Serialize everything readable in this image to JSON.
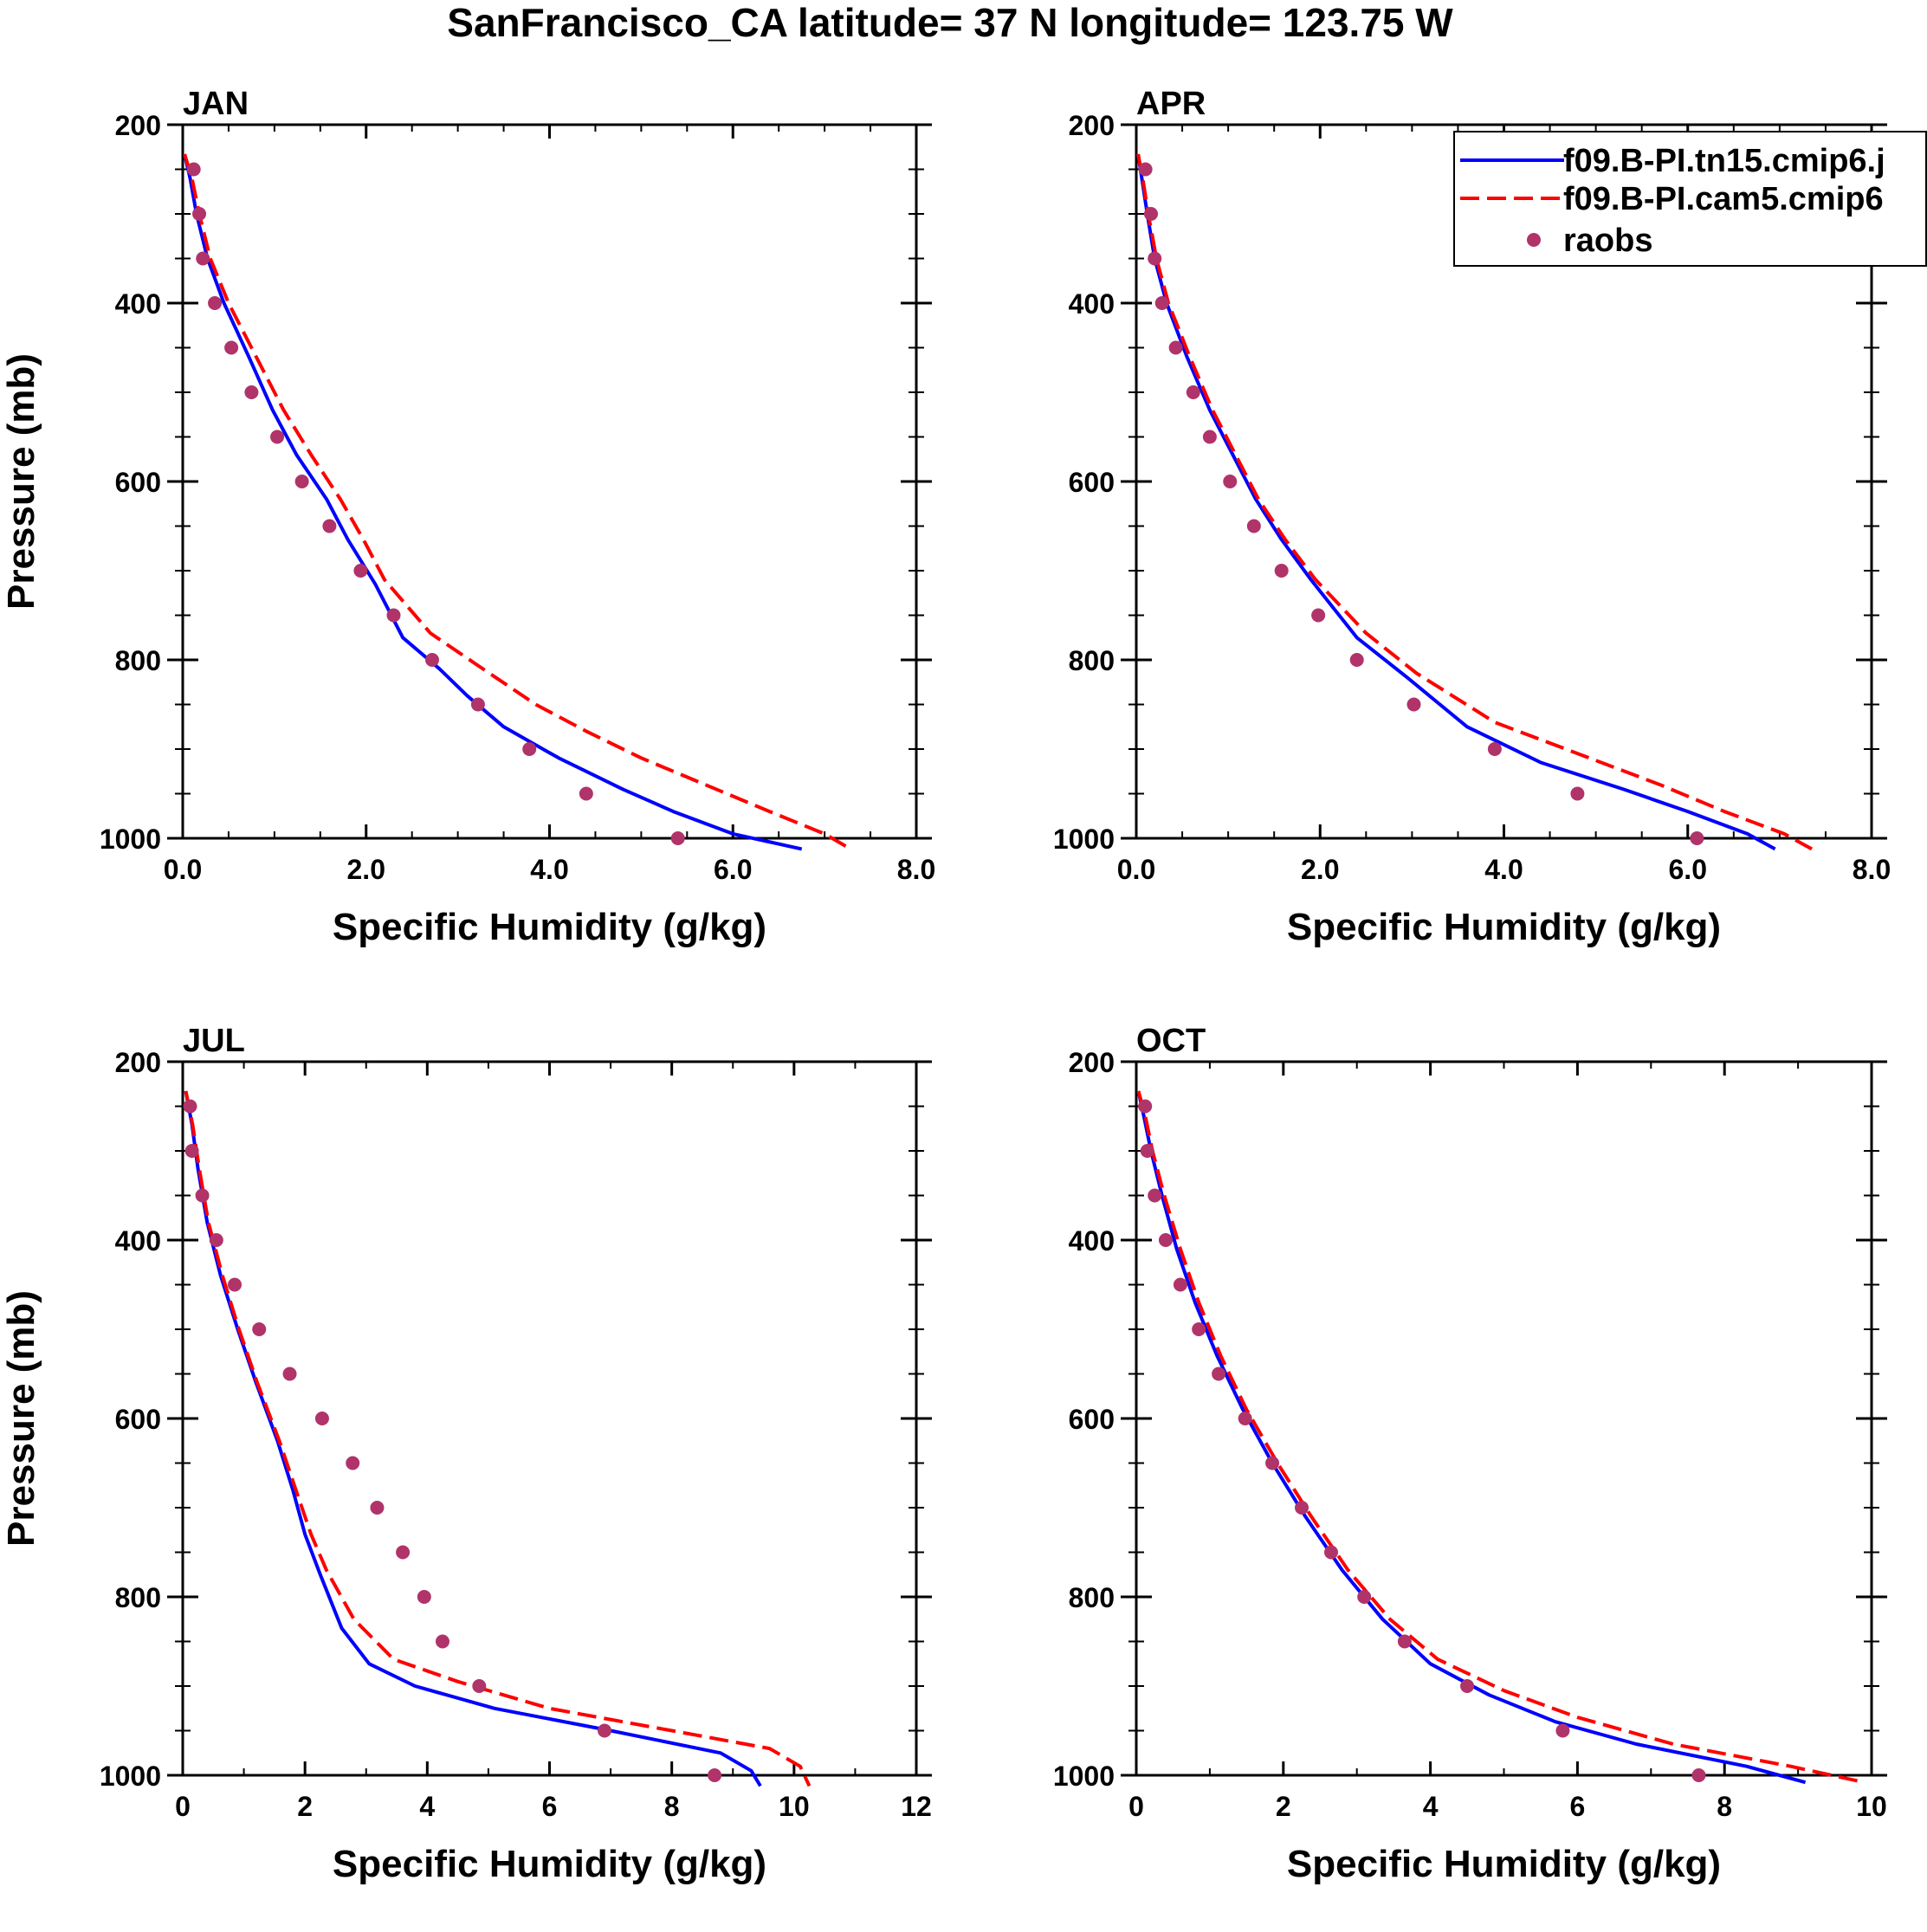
{
  "title": "SanFrancisco_CA  latitude= 37 N longitude= 123.75 W",
  "legend": {
    "series": [
      {
        "name": "f09.B-PI.tn15.cmip6.j",
        "color": "#0000ff",
        "dash": "solid"
      },
      {
        "name": "f09.B-PI.cam5.cmip6",
        "color": "#ff0000",
        "dash": "dashed"
      },
      {
        "name": "raobs",
        "color": "#b0336a",
        "dash": "markers"
      }
    ]
  },
  "chart_data": [
    {
      "type": "line",
      "title": "JAN",
      "xlabel": "Specific Humidity (g/kg)",
      "ylabel": "Pressure (mb)",
      "xlim": [
        0,
        8
      ],
      "ylim": [
        200,
        1020
      ],
      "xticks": [
        0,
        2,
        4,
        6,
        8
      ],
      "xtick_labels": [
        "0.0",
        "2.0",
        "4.0",
        "6.0",
        "8.0"
      ],
      "xminor": [
        0.5,
        1,
        1.5,
        2.5,
        3,
        3.5,
        4.5,
        5,
        5.5,
        6.5,
        7,
        7.5
      ],
      "yticks": [
        200,
        400,
        600,
        800,
        1000
      ],
      "ytick_labels": [
        "200",
        "400",
        "600",
        "800",
        "1000"
      ],
      "series": [
        {
          "name": "f09.B-PI.tn15.cmip6.j",
          "points": [
            [
              0.02,
              233
            ],
            [
              0.08,
              260
            ],
            [
              0.15,
              300
            ],
            [
              0.27,
              350
            ],
            [
              0.45,
              400
            ],
            [
              0.72,
              460
            ],
            [
              0.98,
              520
            ],
            [
              1.24,
              570
            ],
            [
              1.57,
              620
            ],
            [
              1.8,
              665
            ],
            [
              2.1,
              715
            ],
            [
              2.4,
              775
            ],
            [
              2.8,
              810
            ],
            [
              3.1,
              840
            ],
            [
              3.5,
              875
            ],
            [
              4.1,
              910
            ],
            [
              4.8,
              945
            ],
            [
              5.35,
              970
            ],
            [
              6.0,
              995
            ],
            [
              6.75,
              1012
            ]
          ]
        },
        {
          "name": "f09.B-PI.cam5.cmip6",
          "points": [
            [
              0.02,
              233
            ],
            [
              0.1,
              260
            ],
            [
              0.18,
              300
            ],
            [
              0.3,
              350
            ],
            [
              0.5,
              400
            ],
            [
              0.8,
              460
            ],
            [
              1.1,
              520
            ],
            [
              1.4,
              570
            ],
            [
              1.72,
              620
            ],
            [
              1.97,
              665
            ],
            [
              2.2,
              710
            ],
            [
              2.7,
              770
            ],
            [
              3.2,
              805
            ],
            [
              3.85,
              850
            ],
            [
              4.4,
              880
            ],
            [
              5.0,
              910
            ],
            [
              5.7,
              940
            ],
            [
              6.4,
              970
            ],
            [
              7.0,
              995
            ],
            [
              7.3,
              1013
            ]
          ]
        },
        {
          "name": "raobs",
          "points": [
            [
              0.12,
              250
            ],
            [
              0.18,
              300
            ],
            [
              0.22,
              350
            ],
            [
              0.35,
              400
            ],
            [
              0.53,
              450
            ],
            [
              0.75,
              500
            ],
            [
              1.03,
              550
            ],
            [
              1.3,
              600
            ],
            [
              1.6,
              650
            ],
            [
              1.94,
              700
            ],
            [
              2.3,
              750
            ],
            [
              2.72,
              800
            ],
            [
              3.22,
              850
            ],
            [
              3.78,
              900
            ],
            [
              4.4,
              950
            ],
            [
              5.4,
              1000
            ]
          ]
        }
      ]
    },
    {
      "type": "line",
      "title": "APR",
      "xlabel": "Specific Humidity (g/kg)",
      "ylabel": "",
      "xlim": [
        0,
        8
      ],
      "ylim": [
        200,
        1020
      ],
      "xticks": [
        0,
        2,
        4,
        6,
        8
      ],
      "xtick_labels": [
        "0.0",
        "2.0",
        "4.0",
        "6.0",
        "8.0"
      ],
      "xminor": [
        0.5,
        1,
        1.5,
        2.5,
        3,
        3.5,
        4.5,
        5,
        5.5,
        6.5,
        7,
        7.5
      ],
      "yticks": [
        200,
        400,
        600,
        800,
        1000
      ],
      "ytick_labels": [
        "200",
        "400",
        "600",
        "800",
        "1000"
      ],
      "series": [
        {
          "name": "f09.B-PI.tn15.cmip6.j",
          "points": [
            [
              0.02,
              233
            ],
            [
              0.06,
              260
            ],
            [
              0.12,
              300
            ],
            [
              0.2,
              350
            ],
            [
              0.33,
              400
            ],
            [
              0.55,
              460
            ],
            [
              0.8,
              520
            ],
            [
              1.05,
              570
            ],
            [
              1.3,
              620
            ],
            [
              1.58,
              665
            ],
            [
              1.9,
              710
            ],
            [
              2.4,
              775
            ],
            [
              2.95,
              820
            ],
            [
              3.6,
              875
            ],
            [
              4.4,
              915
            ],
            [
              5.3,
              945
            ],
            [
              6.0,
              970
            ],
            [
              6.65,
              995
            ],
            [
              6.95,
              1012
            ]
          ]
        },
        {
          "name": "f09.B-PI.cam5.cmip6",
          "points": [
            [
              0.02,
              233
            ],
            [
              0.07,
              260
            ],
            [
              0.13,
              300
            ],
            [
              0.22,
              350
            ],
            [
              0.35,
              400
            ],
            [
              0.58,
              460
            ],
            [
              0.83,
              520
            ],
            [
              1.08,
              570
            ],
            [
              1.33,
              620
            ],
            [
              1.62,
              665
            ],
            [
              1.95,
              710
            ],
            [
              2.5,
              770
            ],
            [
              3.05,
              815
            ],
            [
              3.9,
              870
            ],
            [
              4.8,
              905
            ],
            [
              5.7,
              940
            ],
            [
              6.4,
              970
            ],
            [
              7.05,
              995
            ],
            [
              7.35,
              1012
            ]
          ]
        },
        {
          "name": "raobs",
          "points": [
            [
              0.1,
              250
            ],
            [
              0.16,
              300
            ],
            [
              0.2,
              350
            ],
            [
              0.28,
              400
            ],
            [
              0.43,
              450
            ],
            [
              0.62,
              500
            ],
            [
              0.8,
              550
            ],
            [
              1.02,
              600
            ],
            [
              1.28,
              650
            ],
            [
              1.58,
              700
            ],
            [
              1.98,
              750
            ],
            [
              2.4,
              800
            ],
            [
              3.02,
              850
            ],
            [
              3.9,
              900
            ],
            [
              4.8,
              950
            ],
            [
              6.1,
              1000
            ]
          ]
        }
      ]
    },
    {
      "type": "line",
      "title": "JUL",
      "xlabel": "Specific Humidity (g/kg)",
      "ylabel": "Pressure (mb)",
      "xlim": [
        0,
        12
      ],
      "ylim": [
        200,
        1020
      ],
      "xticks": [
        0,
        2,
        4,
        6,
        8,
        10,
        12
      ],
      "xtick_labels": [
        "0",
        "2",
        "4",
        "6",
        "8",
        "10",
        "12"
      ],
      "xminor": [
        1,
        3,
        5,
        7,
        9,
        11
      ],
      "yticks": [
        200,
        400,
        600,
        800,
        1000
      ],
      "ytick_labels": [
        "200",
        "400",
        "600",
        "800",
        "1000"
      ],
      "series": [
        {
          "name": "f09.B-PI.tn15.cmip6.j",
          "points": [
            [
              0.05,
              233
            ],
            [
              0.15,
              270
            ],
            [
              0.25,
              320
            ],
            [
              0.4,
              380
            ],
            [
              0.62,
              440
            ],
            [
              0.9,
              500
            ],
            [
              1.2,
              560
            ],
            [
              1.55,
              625
            ],
            [
              1.8,
              680
            ],
            [
              2.0,
              730
            ],
            [
              2.25,
              775
            ],
            [
              2.6,
              835
            ],
            [
              3.05,
              875
            ],
            [
              3.8,
              900
            ],
            [
              5.1,
              925
            ],
            [
              7.0,
              950
            ],
            [
              8.8,
              975
            ],
            [
              9.3,
              995
            ],
            [
              9.45,
              1012
            ]
          ]
        },
        {
          "name": "f09.B-PI.cam5.cmip6",
          "points": [
            [
              0.05,
              233
            ],
            [
              0.16,
              270
            ],
            [
              0.27,
              320
            ],
            [
              0.42,
              380
            ],
            [
              0.65,
              440
            ],
            [
              0.92,
              500
            ],
            [
              1.22,
              560
            ],
            [
              1.58,
              625
            ],
            [
              1.85,
              680
            ],
            [
              2.1,
              730
            ],
            [
              2.35,
              770
            ],
            [
              2.8,
              825
            ],
            [
              3.45,
              870
            ],
            [
              4.5,
              895
            ],
            [
              6.0,
              925
            ],
            [
              8.0,
              950
            ],
            [
              9.6,
              970
            ],
            [
              10.1,
              990
            ],
            [
              10.25,
              1012
            ]
          ]
        },
        {
          "name": "raobs",
          "points": [
            [
              0.12,
              250
            ],
            [
              0.15,
              300
            ],
            [
              0.32,
              350
            ],
            [
              0.55,
              400
            ],
            [
              0.85,
              450
            ],
            [
              1.25,
              500
            ],
            [
              1.75,
              550
            ],
            [
              2.28,
              600
            ],
            [
              2.78,
              650
            ],
            [
              3.18,
              700
            ],
            [
              3.6,
              750
            ],
            [
              3.95,
              800
            ],
            [
              4.25,
              850
            ],
            [
              4.85,
              900
            ],
            [
              6.9,
              950
            ],
            [
              8.7,
              1000
            ]
          ]
        }
      ]
    },
    {
      "type": "line",
      "title": "OCT",
      "xlabel": "Specific Humidity (g/kg)",
      "ylabel": "",
      "xlim": [
        0,
        10
      ],
      "ylim": [
        200,
        1020
      ],
      "xticks": [
        0,
        2,
        4,
        6,
        8,
        10
      ],
      "xtick_labels": [
        "0",
        "2",
        "4",
        "6",
        "8",
        "10"
      ],
      "xminor": [
        1,
        3,
        5,
        7,
        9
      ],
      "yticks": [
        200,
        400,
        600,
        800,
        1000
      ],
      "ytick_labels": [
        "200",
        "400",
        "600",
        "800",
        "1000"
      ],
      "series": [
        {
          "name": "f09.B-PI.tn15.cmip6.j",
          "points": [
            [
              0.03,
              233
            ],
            [
              0.1,
              260
            ],
            [
              0.2,
              300
            ],
            [
              0.35,
              350
            ],
            [
              0.55,
              410
            ],
            [
              0.8,
              470
            ],
            [
              1.1,
              530
            ],
            [
              1.45,
              590
            ],
            [
              1.85,
              650
            ],
            [
              2.3,
              710
            ],
            [
              2.8,
              770
            ],
            [
              3.35,
              825
            ],
            [
              4.0,
              875
            ],
            [
              4.8,
              910
            ],
            [
              5.7,
              940
            ],
            [
              6.8,
              965
            ],
            [
              8.3,
              990
            ],
            [
              9.1,
              1008
            ]
          ]
        },
        {
          "name": "f09.B-PI.cam5.cmip6",
          "points": [
            [
              0.03,
              233
            ],
            [
              0.12,
              260
            ],
            [
              0.22,
              300
            ],
            [
              0.38,
              350
            ],
            [
              0.6,
              410
            ],
            [
              0.85,
              470
            ],
            [
              1.15,
              530
            ],
            [
              1.5,
              590
            ],
            [
              1.92,
              650
            ],
            [
              2.38,
              710
            ],
            [
              2.88,
              770
            ],
            [
              3.45,
              825
            ],
            [
              4.1,
              870
            ],
            [
              5.0,
              905
            ],
            [
              6.0,
              935
            ],
            [
              7.3,
              965
            ],
            [
              8.9,
              990
            ],
            [
              9.9,
              1008
            ]
          ]
        },
        {
          "name": "raobs",
          "points": [
            [
              0.12,
              250
            ],
            [
              0.15,
              300
            ],
            [
              0.25,
              350
            ],
            [
              0.4,
              400
            ],
            [
              0.6,
              450
            ],
            [
              0.85,
              500
            ],
            [
              1.12,
              550
            ],
            [
              1.48,
              600
            ],
            [
              1.85,
              650
            ],
            [
              2.25,
              700
            ],
            [
              2.65,
              750
            ],
            [
              3.1,
              800
            ],
            [
              3.65,
              850
            ],
            [
              4.5,
              900
            ],
            [
              5.8,
              950
            ],
            [
              7.65,
              1000
            ]
          ]
        }
      ]
    }
  ]
}
